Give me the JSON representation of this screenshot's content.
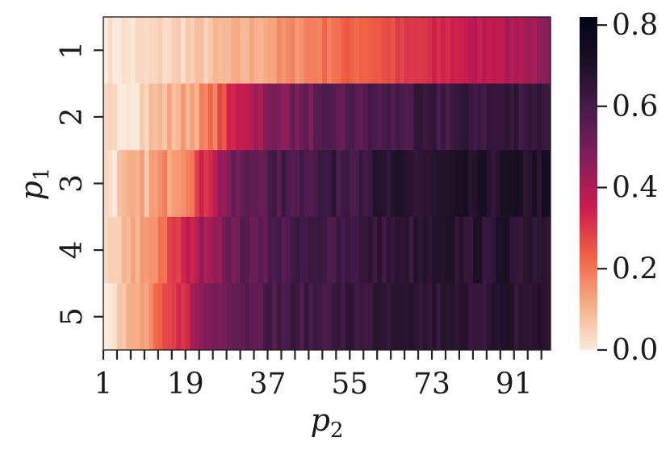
{
  "chart_data": {
    "type": "heatmap",
    "xlabel": {
      "base": "p",
      "sub": "2"
    },
    "ylabel": {
      "base": "p",
      "sub": "1"
    },
    "x_tick_labels": [
      "1",
      "19",
      "37",
      "55",
      "73",
      "91"
    ],
    "x_tick_values": [
      1,
      19,
      37,
      55,
      73,
      91
    ],
    "x_range": [
      1,
      98
    ],
    "y_categories": [
      "1",
      "2",
      "3",
      "4",
      "5"
    ],
    "colorbar": {
      "range": [
        0.0,
        0.8
      ],
      "tick_labels": [
        "0.0",
        "0.2",
        "0.4",
        "0.6",
        "0.8"
      ],
      "tick_values": [
        0.0,
        0.2,
        0.4,
        0.6,
        0.8
      ],
      "max": 0.82,
      "colormap": "rocket_r",
      "colors": [
        "#faebdd",
        "#f6aa82",
        "#f06043",
        "#cb1b4f",
        "#841e5a",
        "#4a1c4d",
        "#1c1124",
        "#03051a"
      ]
    },
    "rows": [
      {
        "label": "1",
        "profile": [
          [
            1,
            0.0
          ],
          [
            12,
            0.03
          ],
          [
            22,
            0.06
          ],
          [
            32,
            0.1
          ],
          [
            42,
            0.16
          ],
          [
            52,
            0.22
          ],
          [
            62,
            0.26
          ],
          [
            72,
            0.31
          ],
          [
            80,
            0.36
          ],
          [
            90,
            0.4
          ],
          [
            98,
            0.44
          ]
        ],
        "noise": 0.03
      },
      {
        "label": "2",
        "profile": [
          [
            1,
            0.0
          ],
          [
            7,
            0.04
          ],
          [
            16,
            0.1
          ],
          [
            23,
            0.16
          ],
          [
            28,
            0.3
          ],
          [
            32,
            0.4
          ],
          [
            38,
            0.48
          ],
          [
            48,
            0.53
          ],
          [
            60,
            0.58
          ],
          [
            75,
            0.62
          ],
          [
            98,
            0.65
          ]
        ],
        "noise": 0.045
      },
      {
        "label": "3",
        "profile": [
          [
            1,
            0.02
          ],
          [
            10,
            0.1
          ],
          [
            18,
            0.2
          ],
          [
            22,
            0.3
          ],
          [
            27,
            0.46
          ],
          [
            33,
            0.55
          ],
          [
            45,
            0.61
          ],
          [
            60,
            0.65
          ],
          [
            80,
            0.68
          ],
          [
            98,
            0.7
          ]
        ],
        "noise": 0.05
      },
      {
        "label": "4",
        "profile": [
          [
            1,
            0.02
          ],
          [
            6,
            0.08
          ],
          [
            12,
            0.18
          ],
          [
            18,
            0.32
          ],
          [
            22,
            0.42
          ],
          [
            30,
            0.53
          ],
          [
            40,
            0.59
          ],
          [
            60,
            0.64
          ],
          [
            80,
            0.67
          ],
          [
            98,
            0.68
          ]
        ],
        "noise": 0.045
      },
      {
        "label": "5",
        "profile": [
          [
            1,
            0.03
          ],
          [
            5,
            0.07
          ],
          [
            10,
            0.13
          ],
          [
            14,
            0.24
          ],
          [
            18,
            0.33
          ],
          [
            22,
            0.46
          ],
          [
            28,
            0.55
          ],
          [
            40,
            0.6
          ],
          [
            60,
            0.64
          ],
          [
            80,
            0.66
          ],
          [
            98,
            0.67
          ]
        ],
        "noise": 0.04
      }
    ]
  }
}
